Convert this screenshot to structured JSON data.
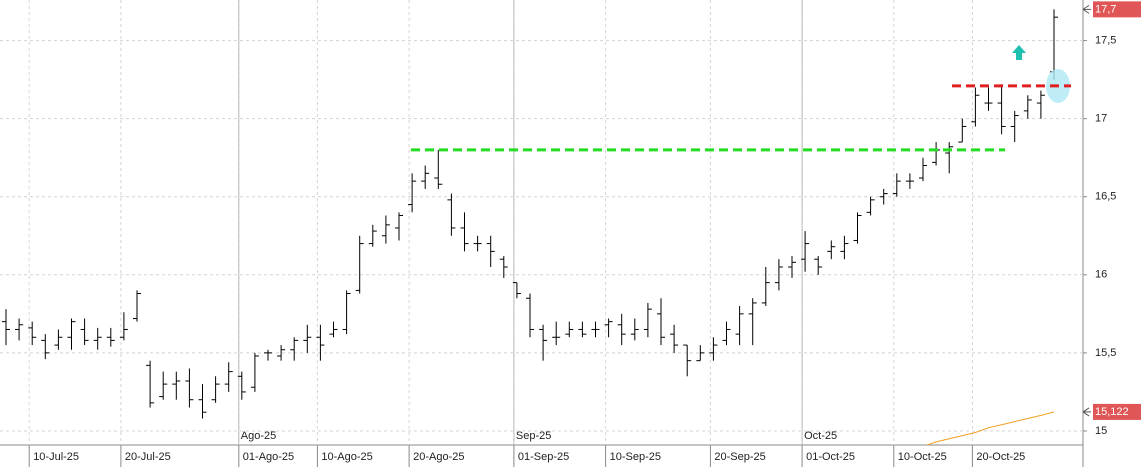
{
  "chart_data": {
    "type": "ohlc",
    "bar_color": "#000000",
    "grid": true,
    "categories": [
      null,
      null,
      "10-Jul-25",
      null,
      null,
      null,
      null,
      null,
      null,
      "20-Jul-25",
      null,
      null,
      null,
      null,
      null,
      null,
      null,
      null,
      "01-Ago-25",
      null,
      null,
      null,
      null,
      null,
      "10-Ago-25",
      null,
      null,
      null,
      null,
      null,
      null,
      "20-Ago-25",
      null,
      null,
      null,
      null,
      null,
      null,
      null,
      "01-Sep-25",
      null,
      null,
      null,
      null,
      null,
      null,
      "10-Sep-25",
      null,
      null,
      null,
      null,
      null,
      null,
      null,
      "20-Sep-25",
      null,
      null,
      null,
      null,
      null,
      null,
      "01-Oct-25",
      null,
      null,
      null,
      null,
      null,
      null,
      "10-Oct-25",
      null,
      null,
      null,
      null,
      null,
      "20-Oct-25",
      null,
      null,
      null,
      null,
      null,
      null
    ],
    "month_categories": [
      null,
      null,
      null,
      null,
      null,
      null,
      null,
      null,
      null,
      null,
      null,
      null,
      null,
      null,
      null,
      null,
      null,
      null,
      "Ago-25",
      null,
      null,
      null,
      null,
      null,
      null,
      null,
      null,
      null,
      null,
      null,
      null,
      null,
      null,
      null,
      null,
      null,
      null,
      null,
      null,
      "Sep-25",
      null,
      null,
      null,
      null,
      null,
      null,
      null,
      null,
      null,
      null,
      null,
      null,
      null,
      null,
      null,
      null,
      null,
      null,
      null,
      null,
      null,
      "Oct-25",
      null,
      null,
      null,
      null,
      null,
      null,
      null,
      null,
      null,
      null,
      null,
      null,
      null,
      null,
      null,
      null,
      null,
      null,
      null
    ],
    "open": [
      15.7,
      15.65,
      15.66,
      15.58,
      15.55,
      15.6,
      15.65,
      15.58,
      15.6,
      15.6,
      15.72,
      15.42,
      15.22,
      15.3,
      15.32,
      15.2,
      15.2,
      15.3,
      15.35,
      15.28,
      15.5,
      15.48,
      15.52,
      15.58,
      15.6,
      15.62,
      15.65,
      15.9,
      16.2,
      16.25,
      16.3,
      16.45,
      16.6,
      16.62,
      16.48,
      16.3,
      16.2,
      16.2,
      16.1,
      15.95,
      15.85,
      15.65,
      15.6,
      15.62,
      15.65,
      15.65,
      15.68,
      15.68,
      15.62,
      15.65,
      15.75,
      15.62,
      15.55,
      15.45,
      15.5,
      15.58,
      15.62,
      15.75,
      15.82,
      15.95,
      16.05,
      16.1,
      16.1,
      16.15,
      16.15,
      16.22,
      16.4,
      16.5,
      16.52,
      16.6,
      16.62,
      16.72,
      16.78,
      16.85,
      16.98,
      17.1,
      17.1,
      16.95,
      17.05,
      17.1,
      17.3
    ],
    "high": [
      15.78,
      15.72,
      15.7,
      15.62,
      15.65,
      15.72,
      15.72,
      15.66,
      15.66,
      15.76,
      15.9,
      15.45,
      15.38,
      15.38,
      15.4,
      15.3,
      15.35,
      15.44,
      15.38,
      15.5,
      15.52,
      15.55,
      15.6,
      15.68,
      15.68,
      15.7,
      15.9,
      16.25,
      16.32,
      16.38,
      16.4,
      16.65,
      16.7,
      16.8,
      16.52,
      16.4,
      16.25,
      16.25,
      16.12,
      15.95,
      15.88,
      15.68,
      15.7,
      15.7,
      15.7,
      15.7,
      15.72,
      15.75,
      15.72,
      15.82,
      15.85,
      15.68,
      15.55,
      15.55,
      15.6,
      15.7,
      15.8,
      15.85,
      16.05,
      16.1,
      16.12,
      16.28,
      16.12,
      16.22,
      16.25,
      16.4,
      16.5,
      16.55,
      16.65,
      16.65,
      16.75,
      16.85,
      16.85,
      17.0,
      17.2,
      17.2,
      17.22,
      17.05,
      17.15,
      17.18,
      17.7
    ],
    "low": [
      15.55,
      15.58,
      15.55,
      15.46,
      15.52,
      15.52,
      15.55,
      15.52,
      15.54,
      15.58,
      15.7,
      15.15,
      15.2,
      15.2,
      15.15,
      15.08,
      15.18,
      15.25,
      15.2,
      15.25,
      15.45,
      15.45,
      15.45,
      15.5,
      15.45,
      15.6,
      15.62,
      15.88,
      16.18,
      16.2,
      16.22,
      16.4,
      16.55,
      16.55,
      16.25,
      16.15,
      16.15,
      16.05,
      15.98,
      15.85,
      15.6,
      15.45,
      15.55,
      15.6,
      15.6,
      15.6,
      15.6,
      15.55,
      15.58,
      15.6,
      15.55,
      15.5,
      15.35,
      15.45,
      15.45,
      15.55,
      15.55,
      15.55,
      15.8,
      15.9,
      15.98,
      16.02,
      16.0,
      16.1,
      16.1,
      16.2,
      16.38,
      16.45,
      16.5,
      16.55,
      16.6,
      16.7,
      16.65,
      16.85,
      16.95,
      17.05,
      16.9,
      16.85,
      17.0,
      17.0,
      17.25
    ],
    "close": [
      15.65,
      15.68,
      15.6,
      15.5,
      15.6,
      15.7,
      15.58,
      15.6,
      15.58,
      15.65,
      15.88,
      15.18,
      15.3,
      15.32,
      15.2,
      15.12,
      15.3,
      15.38,
      15.25,
      15.48,
      15.5,
      15.52,
      15.58,
      15.6,
      15.55,
      15.65,
      15.88,
      16.2,
      16.28,
      16.32,
      16.38,
      16.6,
      16.65,
      16.58,
      16.3,
      16.2,
      16.2,
      16.15,
      16.05,
      15.88,
      15.65,
      15.58,
      15.6,
      15.65,
      15.62,
      15.65,
      15.7,
      15.62,
      15.65,
      15.78,
      15.6,
      15.55,
      15.45,
      15.5,
      15.55,
      15.65,
      15.75,
      15.82,
      15.95,
      16.05,
      16.08,
      16.2,
      16.05,
      16.18,
      16.2,
      16.38,
      16.48,
      16.52,
      16.6,
      16.6,
      16.7,
      16.8,
      16.82,
      16.95,
      17.15,
      17.1,
      16.95,
      17.02,
      17.12,
      17.15,
      17.65
    ],
    "overlay_line": {
      "color": "#f0a020",
      "values": [
        null,
        null,
        null,
        null,
        null,
        null,
        null,
        null,
        null,
        null,
        null,
        null,
        null,
        null,
        null,
        null,
        null,
        null,
        null,
        null,
        null,
        null,
        null,
        null,
        null,
        null,
        null,
        null,
        null,
        null,
        null,
        null,
        null,
        null,
        null,
        null,
        null,
        null,
        null,
        null,
        null,
        null,
        null,
        null,
        null,
        null,
        null,
        null,
        null,
        null,
        null,
        null,
        null,
        null,
        null,
        null,
        null,
        null,
        null,
        null,
        null,
        null,
        null,
        null,
        null,
        null,
        null,
        null,
        null,
        null,
        14.9,
        14.93,
        14.95,
        14.97,
        14.99,
        15.02,
        15.04,
        15.06,
        15.08,
        15.1,
        15.122
      ]
    },
    "levels": [
      {
        "value": 16.8,
        "color": "#22dd22"
      },
      {
        "value": 17.21,
        "color": "#e02020"
      }
    ],
    "price_labels": [
      {
        "value": 17.7,
        "label": "17,7",
        "color": "#e05555"
      },
      {
        "value": 15.122,
        "label": "15,122",
        "color": "#e05555"
      }
    ],
    "ylim": [
      14.91,
      17.76
    ],
    "yticks": [
      15,
      {
        "value": 15.5,
        "label": "15,5"
      },
      16,
      {
        "value": 16.5,
        "label": "16,5"
      },
      17,
      {
        "value": 17.5,
        "label": "17,5"
      }
    ]
  }
}
